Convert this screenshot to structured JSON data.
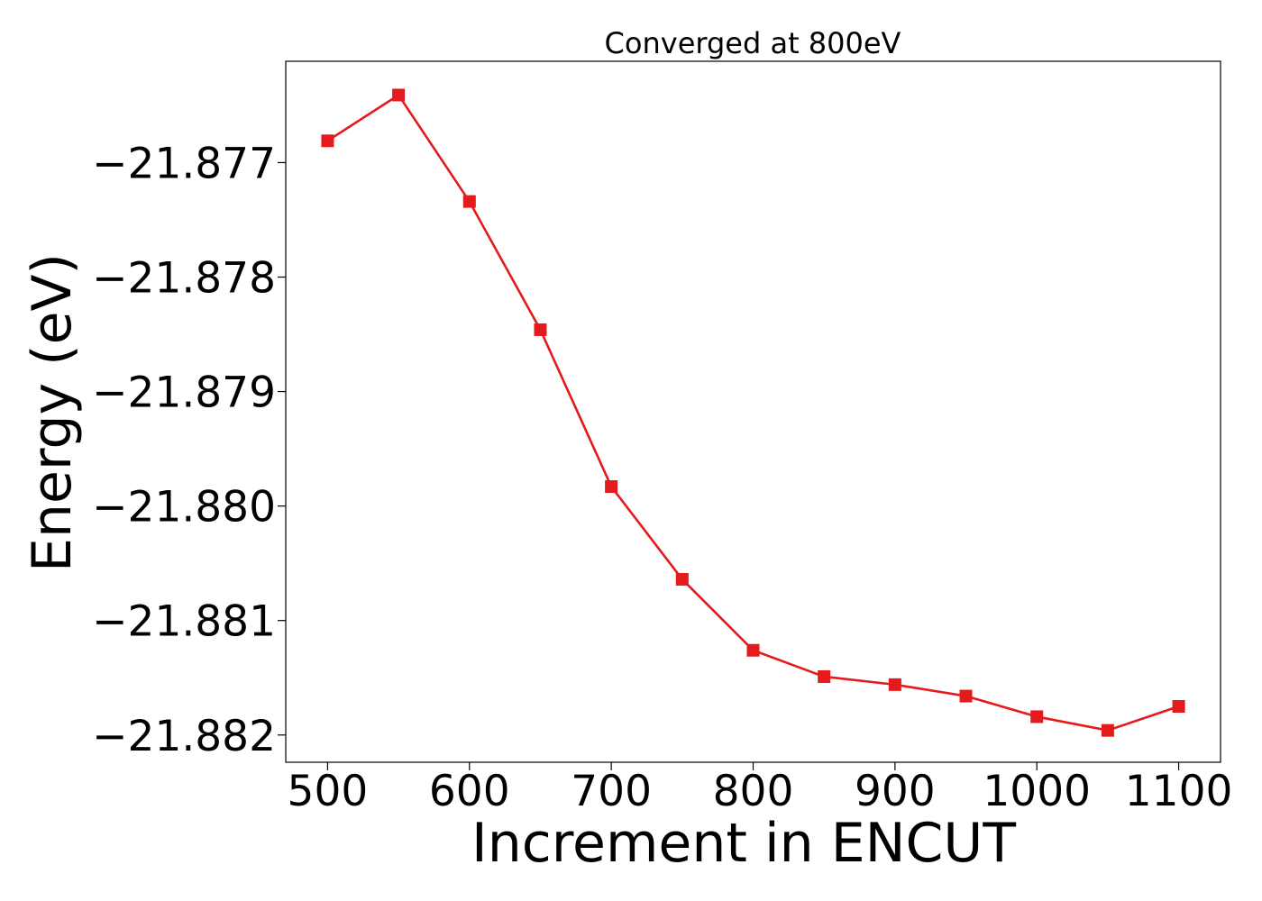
{
  "chart_data": {
    "type": "line",
    "title": "Converged at 800eV",
    "xlabel": "Increment in ENCUT",
    "ylabel": "Energy (eV)",
    "x": [
      500,
      550,
      600,
      650,
      700,
      750,
      800,
      850,
      900,
      950,
      1000,
      1050,
      1100
    ],
    "series": [
      {
        "values": [
          -21.87681,
          -21.87641,
          -21.87734,
          -21.87846,
          -21.87983,
          -21.88064,
          -21.88126,
          -21.88149,
          -21.88156,
          -21.88166,
          -21.88184,
          -21.88196,
          -21.88175
        ],
        "color": "#e41a1c",
        "marker": "square"
      }
    ],
    "xlim": [
      470.5,
      1129.5
    ],
    "ylim": [
      -21.882238,
      -21.876115
    ],
    "xticks": [
      500,
      600,
      700,
      800,
      900,
      1000,
      1100
    ],
    "xtick_labels": [
      "500",
      "600",
      "700",
      "800",
      "900",
      "1000",
      "1100"
    ],
    "yticks": [
      -21.877,
      -21.878,
      -21.879,
      -21.88,
      -21.881,
      -21.882
    ],
    "ytick_labels": [
      "−21.877",
      "−21.878",
      "−21.879",
      "−21.880",
      "−21.881",
      "−21.882"
    ],
    "grid": false,
    "legend": "none"
  }
}
